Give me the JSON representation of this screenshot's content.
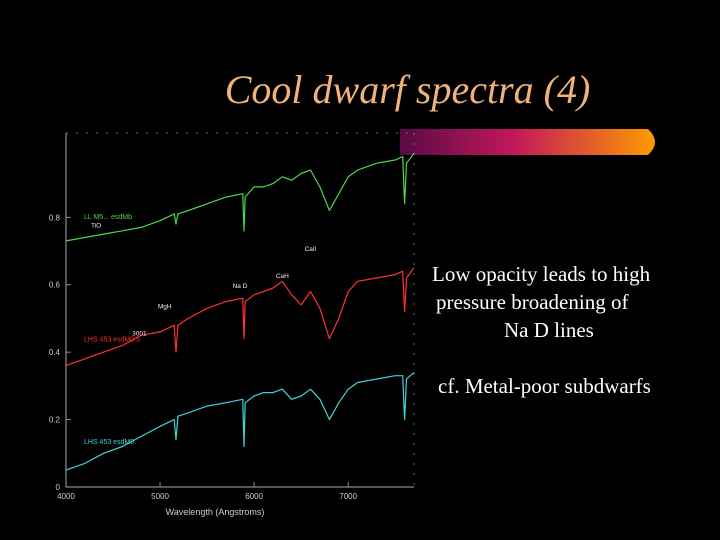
{
  "title": "Cool dwarf spectra (4)",
  "bullets": {
    "line1": "Low opacity leads to high",
    "line2": "pressure broadening of",
    "line3": "Na D lines",
    "line4": "cf. Metal-poor subdwarfs"
  },
  "colors": {
    "title": "#f0b27a",
    "bar_start": "#5a0a45",
    "bar_mid": "#c2185b",
    "bar_end": "#ff9a00"
  },
  "chart_data": {
    "type": "line",
    "title": "",
    "xlabel": "Wavelength (Angstroms)",
    "ylabel": "",
    "xlim": [
      4000,
      7700
    ],
    "ylim": [
      0,
      1.05
    ],
    "x_ticks": [
      "4000",
      "5000",
      "6000",
      "7000"
    ],
    "y_ticks": [
      "0",
      "0.2",
      "0.4",
      "0.6",
      "0.8"
    ],
    "series": [
      {
        "name": "LL M5... esdMb",
        "color": "#4cd64c",
        "x": [
          4000,
          4200,
          4400,
          4600,
          4800,
          5000,
          5150,
          5170,
          5190,
          5300,
          5500,
          5700,
          5880,
          5893,
          5905,
          6000,
          6100,
          6200,
          6300,
          6400,
          6500,
          6600,
          6700,
          6800,
          6900,
          7000,
          7100,
          7300,
          7500,
          7580,
          7600,
          7620,
          7700
        ],
        "y": [
          0.73,
          0.74,
          0.75,
          0.76,
          0.77,
          0.79,
          0.81,
          0.78,
          0.81,
          0.82,
          0.84,
          0.86,
          0.87,
          0.76,
          0.86,
          0.89,
          0.89,
          0.9,
          0.92,
          0.91,
          0.93,
          0.94,
          0.89,
          0.82,
          0.87,
          0.92,
          0.94,
          0.96,
          0.97,
          0.98,
          0.84,
          0.96,
          0.99
        ]
      },
      {
        "name": "LHS 453 esdM0.5",
        "color": "#ff3030",
        "x": [
          4000,
          4200,
          4400,
          4600,
          4800,
          5000,
          5150,
          5170,
          5190,
          5300,
          5500,
          5700,
          5880,
          5893,
          5905,
          6000,
          6100,
          6200,
          6300,
          6400,
          6500,
          6600,
          6700,
          6800,
          6900,
          7000,
          7100,
          7300,
          7500,
          7580,
          7600,
          7620,
          7700
        ],
        "y": [
          0.36,
          0.38,
          0.4,
          0.42,
          0.45,
          0.46,
          0.48,
          0.4,
          0.48,
          0.5,
          0.53,
          0.55,
          0.56,
          0.44,
          0.55,
          0.57,
          0.58,
          0.59,
          0.61,
          0.57,
          0.54,
          0.58,
          0.53,
          0.44,
          0.5,
          0.58,
          0.61,
          0.62,
          0.63,
          0.64,
          0.52,
          0.62,
          0.65
        ]
      },
      {
        "name": "LHS 453 esdM0",
        "color": "#3fd4d8",
        "x": [
          4000,
          4200,
          4400,
          4600,
          4800,
          5000,
          5150,
          5170,
          5190,
          5300,
          5500,
          5700,
          5880,
          5893,
          5905,
          6000,
          6100,
          6200,
          6300,
          6400,
          6500,
          6600,
          6700,
          6800,
          6900,
          7000,
          7100,
          7300,
          7500,
          7580,
          7600,
          7620,
          7700
        ],
        "y": [
          0.05,
          0.07,
          0.1,
          0.12,
          0.15,
          0.18,
          0.2,
          0.14,
          0.21,
          0.22,
          0.24,
          0.25,
          0.26,
          0.12,
          0.25,
          0.27,
          0.28,
          0.28,
          0.29,
          0.26,
          0.27,
          0.29,
          0.26,
          0.2,
          0.25,
          0.29,
          0.31,
          0.32,
          0.33,
          0.33,
          0.2,
          0.32,
          0.34
        ]
      }
    ],
    "annotations": [
      {
        "text": "CaII",
        "x": 6600,
        "y": 0.7
      },
      {
        "text": "CaH",
        "x": 6300,
        "y": 0.62
      },
      {
        "text": "Na D",
        "x": 5850,
        "y": 0.59
      },
      {
        "text": "MgH",
        "x": 5050,
        "y": 0.53
      },
      {
        "text": "TiO",
        "x": 4320,
        "y": 0.77
      },
      {
        "text": "3001",
        "x": 4780,
        "y": 0.45
      }
    ]
  }
}
